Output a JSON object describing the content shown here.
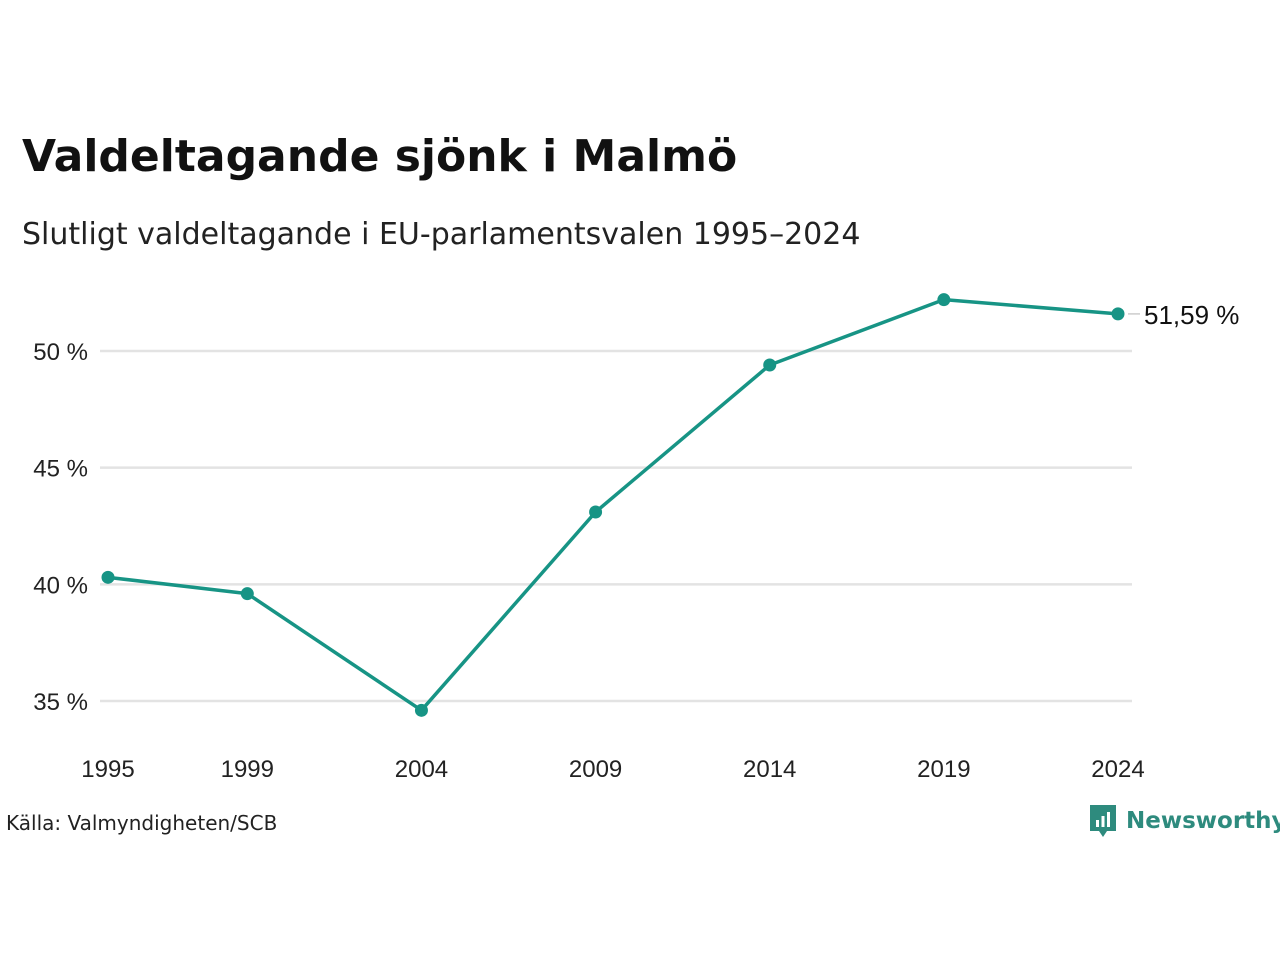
{
  "header": {
    "title": "Valdeltagande sjönk i Malmö",
    "subtitle": "Slutligt valdeltagande i EU-parlamentsvalen 1995–2024"
  },
  "footer": {
    "source": "Källa: Valmyndigheten/SCB",
    "brand": "Newsworthy"
  },
  "colors": {
    "line": "#179485",
    "grid": "#e3e3e3",
    "brand": "#2e8b7e"
  },
  "chart_data": {
    "type": "line",
    "title": "Valdeltagande sjönk i Malmö",
    "subtitle": "Slutligt valdeltagande i EU-parlamentsvalen 1995–2024",
    "xlabel": "",
    "ylabel": "",
    "x": [
      1995,
      1999,
      2004,
      2009,
      2014,
      2019,
      2024
    ],
    "x_tick_labels": [
      "1995",
      "1999",
      "2004",
      "2009",
      "2014",
      "2019",
      "2024"
    ],
    "y_ticks": [
      35,
      40,
      45,
      50
    ],
    "y_tick_labels": [
      "35 %",
      "40 %",
      "45 %",
      "50 %"
    ],
    "ylim": [
      33.5,
      53
    ],
    "grid": true,
    "series": [
      {
        "values": [
          40.3,
          39.6,
          34.6,
          43.1,
          49.4,
          52.2,
          51.59
        ],
        "end_label": "51,59 %"
      }
    ]
  }
}
